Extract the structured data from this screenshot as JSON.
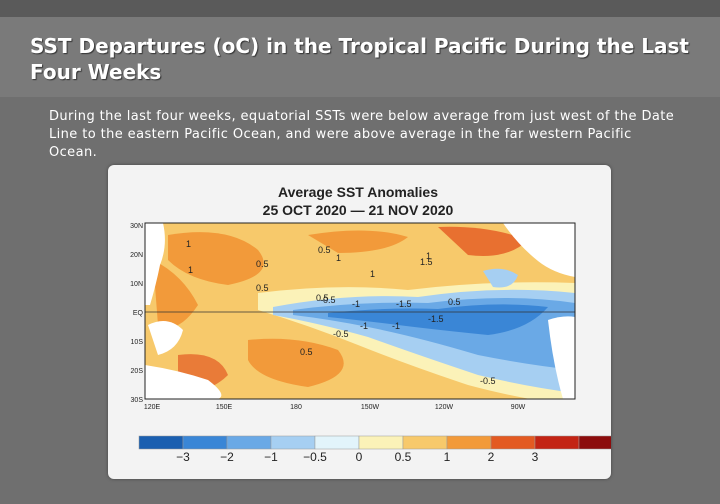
{
  "slide": {
    "title": "SST Departures (oC) in the Tropical Pacific During the Last Four Weeks",
    "description": "During the last four weeks, equatorial SSTs were below average from just west of the Date Line to the eastern Pacific Ocean, and were above average in the far western Pacific Ocean."
  },
  "map": {
    "title": "Average SST Anomalies",
    "period": "25 OCT 2020 — 21 NOV 2020",
    "lat_labels": [
      "30N",
      "20N",
      "10N",
      "EQ",
      "10S",
      "20S",
      "30S"
    ],
    "lon_labels": [
      "120E",
      "150E",
      "180",
      "150W",
      "120W",
      "90W"
    ],
    "contour_labels": [
      "0.5",
      "1",
      "1",
      "0.5",
      "1.5",
      "1",
      "1",
      "0.5",
      "-0.5",
      "-1",
      "-1.5",
      "0.5",
      "-1",
      "-1.5",
      "-0.5",
      "0.5",
      "-0.5",
      "1",
      "-1",
      "0.5"
    ],
    "legend": {
      "colors": [
        "#1b5fb0",
        "#3a86d6",
        "#6aa9e6",
        "#a6cff2",
        "#e2f4fb",
        "#fbf2b8",
        "#f7c96b",
        "#f29a3a",
        "#e35a22",
        "#c32414",
        "#8c0c0c"
      ],
      "labels": [
        "−3",
        "−2",
        "−1",
        "−0.5",
        "0",
        "0.5",
        "1",
        "2",
        "3"
      ]
    }
  }
}
